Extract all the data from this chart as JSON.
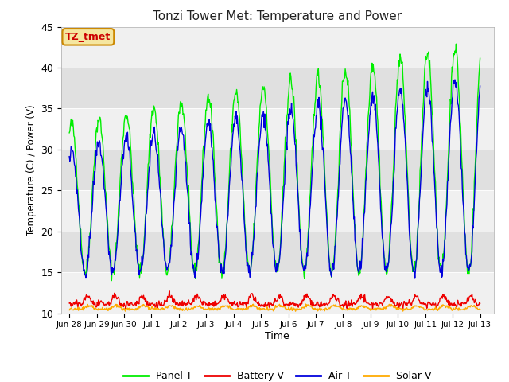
{
  "title": "Tonzi Tower Met: Temperature and Power",
  "xlabel": "Time",
  "ylabel": "Temperature (C) / Power (V)",
  "annotation": "TZ_tmet",
  "annotation_color": "#cc0000",
  "annotation_bg": "#f5e6a0",
  "annotation_border": "#cc8800",
  "ylim": [
    10,
    45
  ],
  "panel_color": "#00ee00",
  "battery_color": "#ee0000",
  "air_color": "#0000dd",
  "solar_color": "#ffaa00",
  "background_color": "#ffffff",
  "plot_bg_light": "#f0f0f0",
  "plot_bg_dark": "#e0e0e0",
  "legend_labels": [
    "Panel T",
    "Battery V",
    "Air T",
    "Solar V"
  ],
  "tick_labels": [
    "Jun 28",
    "Jun 29",
    "Jun 30",
    "Jul 1",
    "Jul 2",
    "Jul 3",
    "Jul 4",
    "Jul 5",
    "Jul 6",
    "Jul 7",
    "Jul 8",
    "Jul 9",
    "Jul 10",
    "Jul 11",
    "Jul 12",
    "Jul 13"
  ]
}
